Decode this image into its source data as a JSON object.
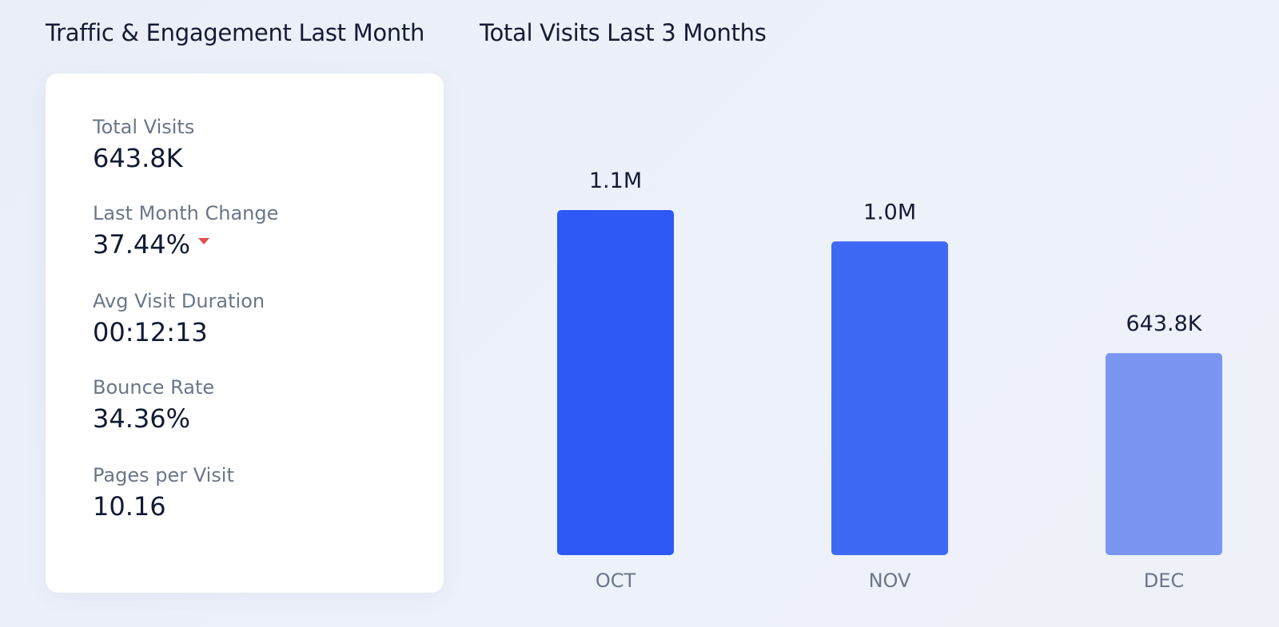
{
  "titles": {
    "left": "Traffic & Engagement Last Month",
    "right": "Total Visits Last 3 Months"
  },
  "metrics": [
    {
      "label": "Total Visits",
      "value": "643.8K"
    },
    {
      "label": "Last Month Change",
      "value": "37.44%",
      "trend_icon": "caret-down-icon",
      "trend": "down"
    },
    {
      "label": "Avg Visit Duration",
      "value": "00:12:13"
    },
    {
      "label": "Bounce Rate",
      "value": "34.36%"
    },
    {
      "label": "Pages per Visit",
      "value": "10.16"
    }
  ],
  "colors": {
    "trend_down": "#e0504f",
    "bars": [
      "#2e58f5",
      "#3e69f4",
      "#7a96f2"
    ]
  },
  "chart_data": {
    "type": "bar",
    "title": "Total Visits Last 3 Months",
    "categories": [
      "OCT",
      "NOV",
      "DEC"
    ],
    "values": [
      1100000,
      1000000,
      643800
    ],
    "data_labels": [
      "1.1M",
      "1.0M",
      "643.8K"
    ],
    "xlabel": "",
    "ylabel": "",
    "ylim": [
      0,
      1100000
    ],
    "grid": false,
    "legend": "none"
  }
}
